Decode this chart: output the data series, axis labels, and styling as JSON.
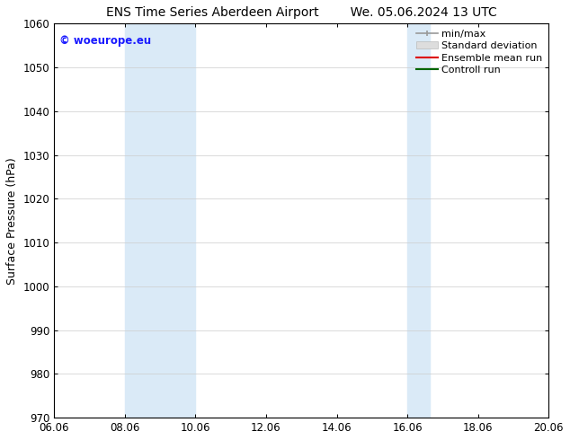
{
  "title_left": "ENS Time Series Aberdeen Airport",
  "title_right": "We. 05.06.2024 13 UTC",
  "ylabel": "Surface Pressure (hPa)",
  "xlabel": "",
  "xlim": [
    6.06,
    20.06
  ],
  "ylim": [
    970,
    1060
  ],
  "yticks": [
    970,
    980,
    990,
    1000,
    1010,
    1020,
    1030,
    1040,
    1050,
    1060
  ],
  "xticks": [
    6.06,
    8.06,
    10.06,
    12.06,
    14.06,
    16.06,
    18.06,
    20.06
  ],
  "xticklabels": [
    "06.06",
    "08.06",
    "10.06",
    "12.06",
    "14.06",
    "16.06",
    "18.06",
    "20.06"
  ],
  "shaded_regions": [
    {
      "xmin": 8.06,
      "xmax": 10.06,
      "color": "#daeaf7"
    },
    {
      "xmin": 16.06,
      "xmax": 16.7,
      "color": "#daeaf7"
    }
  ],
  "watermark_text": "© woeurope.eu",
  "watermark_color": "#1a1aff",
  "bg_color": "#ffffff",
  "title_fontsize": 10,
  "tick_fontsize": 8.5,
  "legend_fontsize": 8,
  "ylabel_fontsize": 9
}
